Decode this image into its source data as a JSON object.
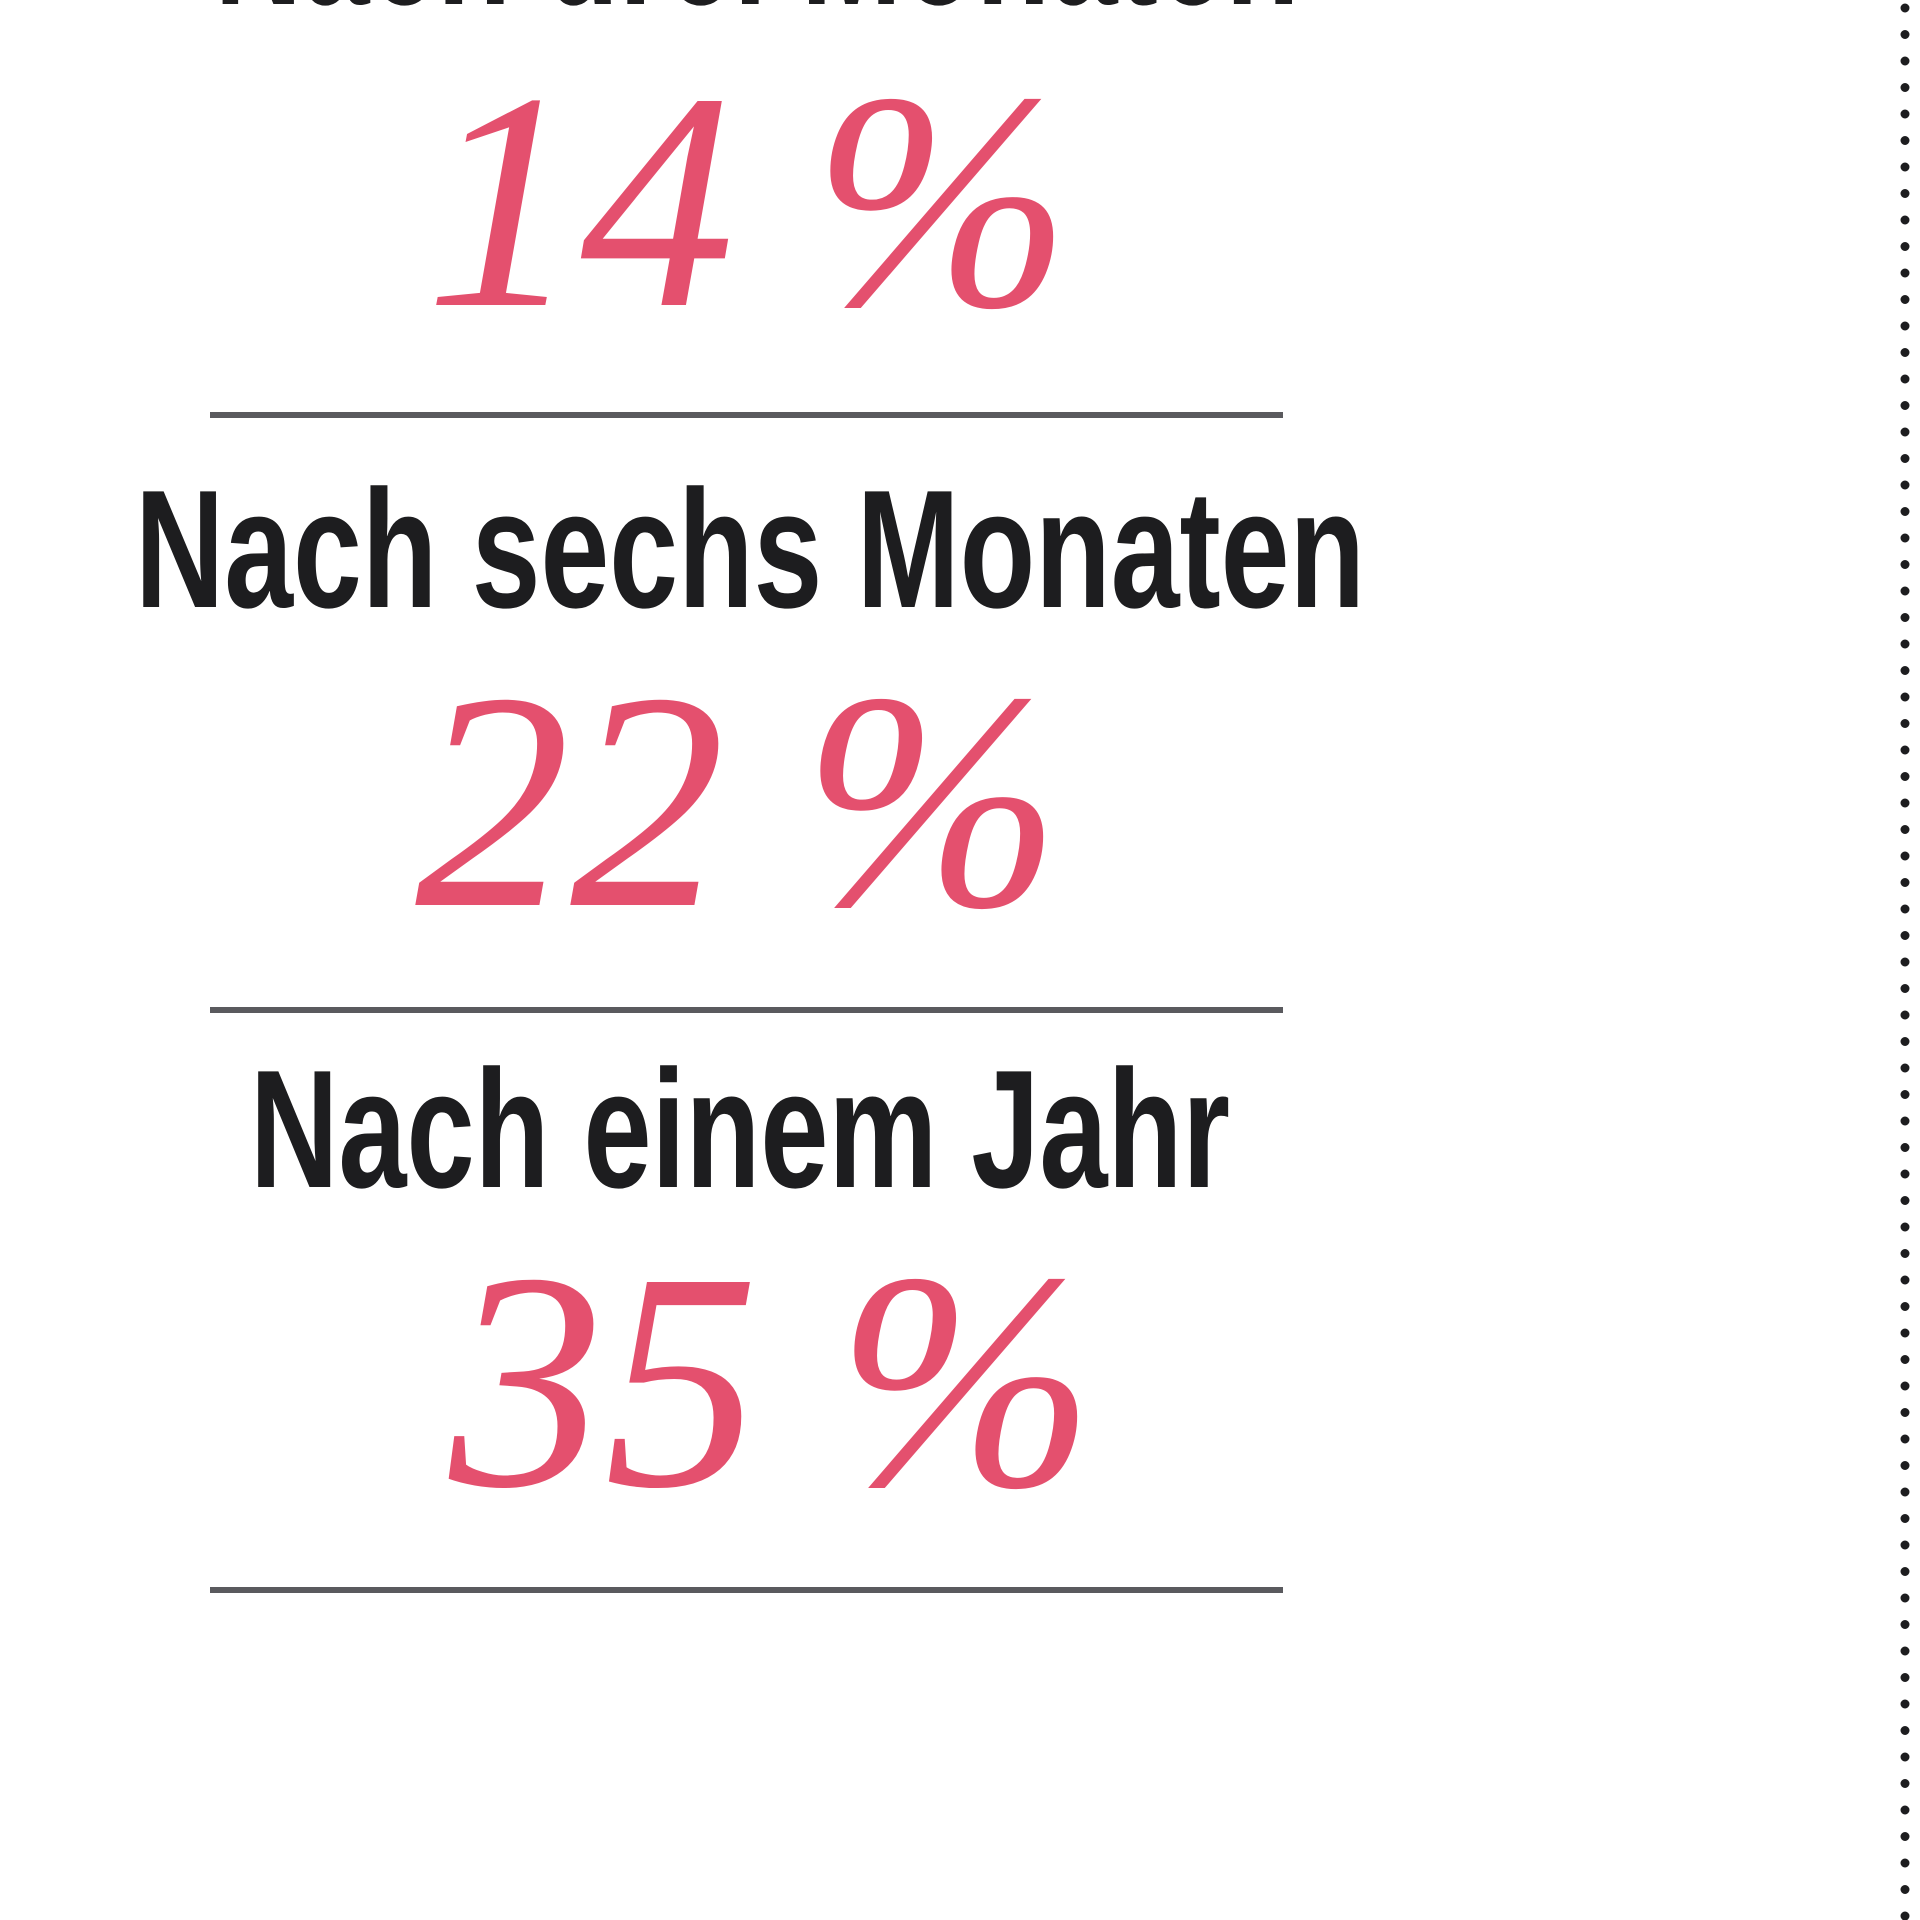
{
  "sections": [
    {
      "heading": "Nach drei Monaten",
      "value": "14 %"
    },
    {
      "heading": "Nach sechs Monaten",
      "value": "22 %"
    },
    {
      "heading": "Nach einem Jahr",
      "value": "35 %"
    }
  ]
}
